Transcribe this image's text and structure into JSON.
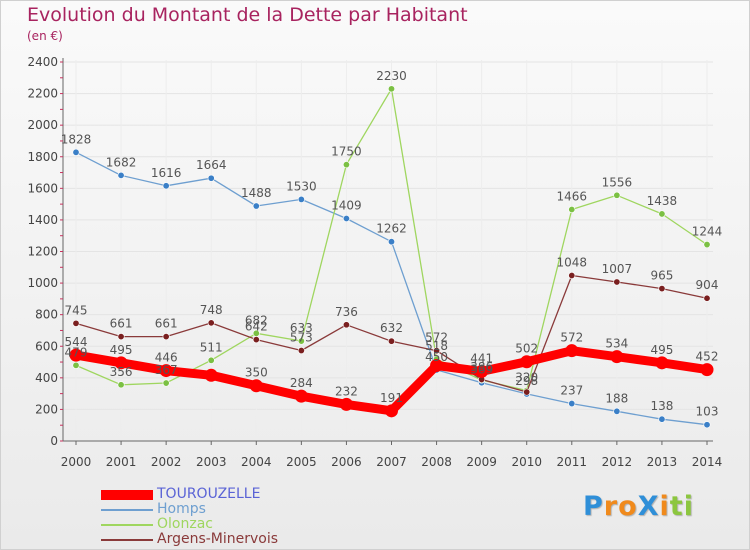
{
  "title": "Evolution du Montant de la Dette par Habitant",
  "subtitle": "(en €)",
  "logo": {
    "text": "Proxiti",
    "letters": [
      {
        "ch": "P",
        "color": "#2f8fd8"
      },
      {
        "ch": "r",
        "color": "#f08a1c"
      },
      {
        "ch": "o",
        "color": "#f08a1c"
      },
      {
        "ch": "X",
        "color": "#2f8fd8"
      },
      {
        "ch": "i",
        "color": "#f08a1c"
      },
      {
        "ch": "t",
        "color": "#8cc63f"
      },
      {
        "ch": "i",
        "color": "#8cc63f"
      }
    ]
  },
  "chart_data": {
    "type": "line",
    "x": [
      "2000",
      "2001",
      "2002",
      "2003",
      "2004",
      "2005",
      "2006",
      "2007",
      "2008",
      "2009",
      "2010",
      "2011",
      "2012",
      "2013",
      "2014"
    ],
    "ylim": [
      0,
      2400
    ],
    "yticks": [
      0,
      200,
      400,
      600,
      800,
      1000,
      1200,
      1400,
      1600,
      1800,
      2000,
      2200,
      2400
    ],
    "grid": true,
    "legend_position": "bottom-left",
    "series": [
      {
        "name": "TOUROUZELLE",
        "color": "#ff0000",
        "line_color": "#ff0000",
        "marker_color": "#ff0000",
        "emphasis": true,
        "values": [
          544,
          495,
          446,
          416,
          350,
          284,
          232,
          191,
          478,
          441,
          502,
          572,
          534,
          495,
          452
        ],
        "labels": [
          "544",
          "495",
          "446",
          "",
          "350",
          "284",
          "232",
          "191",
          "",
          "441",
          "502",
          "572",
          "534",
          "495",
          "452"
        ]
      },
      {
        "name": "Homps",
        "color": "#6e9fd0",
        "line_color": "#6e9fd0",
        "marker_color": "#3a7fc7",
        "emphasis": false,
        "values": [
          1828,
          1682,
          1616,
          1664,
          1488,
          1530,
          1409,
          1262,
          450,
          369,
          298,
          237,
          188,
          138,
          103
        ],
        "labels": [
          "1828",
          "1682",
          "1616",
          "1664",
          "1488",
          "1530",
          "1409",
          "1262",
          "450",
          "369",
          "298",
          "237",
          "188",
          "138",
          "103"
        ]
      },
      {
        "name": "Olonzac",
        "color": "#8fd14f",
        "line_color": "#9fd65f",
        "marker_color": "#7bc043",
        "emphasis": false,
        "values": [
          479,
          356,
          367,
          511,
          682,
          633,
          1750,
          2230,
          518,
          386,
          320,
          1466,
          1556,
          1438,
          1244
        ],
        "labels": [
          "479",
          "356",
          "367",
          "511",
          "682",
          "633",
          "1750",
          "2230",
          "518",
          "386",
          "320",
          "1466",
          "1556",
          "1438",
          "1244"
        ]
      },
      {
        "name": "Argens-Minervois",
        "color": "#8a2a2a",
        "line_color": "#8a3a3a",
        "marker_color": "#7a1f1f",
        "emphasis": false,
        "values": [
          745,
          661,
          661,
          748,
          642,
          573,
          736,
          632,
          572,
          390,
          310,
          1048,
          1007,
          965,
          904
        ],
        "labels": [
          "745",
          "661",
          "661",
          "748",
          "642",
          "573",
          "736",
          "632",
          "572",
          "",
          "",
          "1048",
          "1007",
          "965",
          "904"
        ]
      }
    ]
  }
}
